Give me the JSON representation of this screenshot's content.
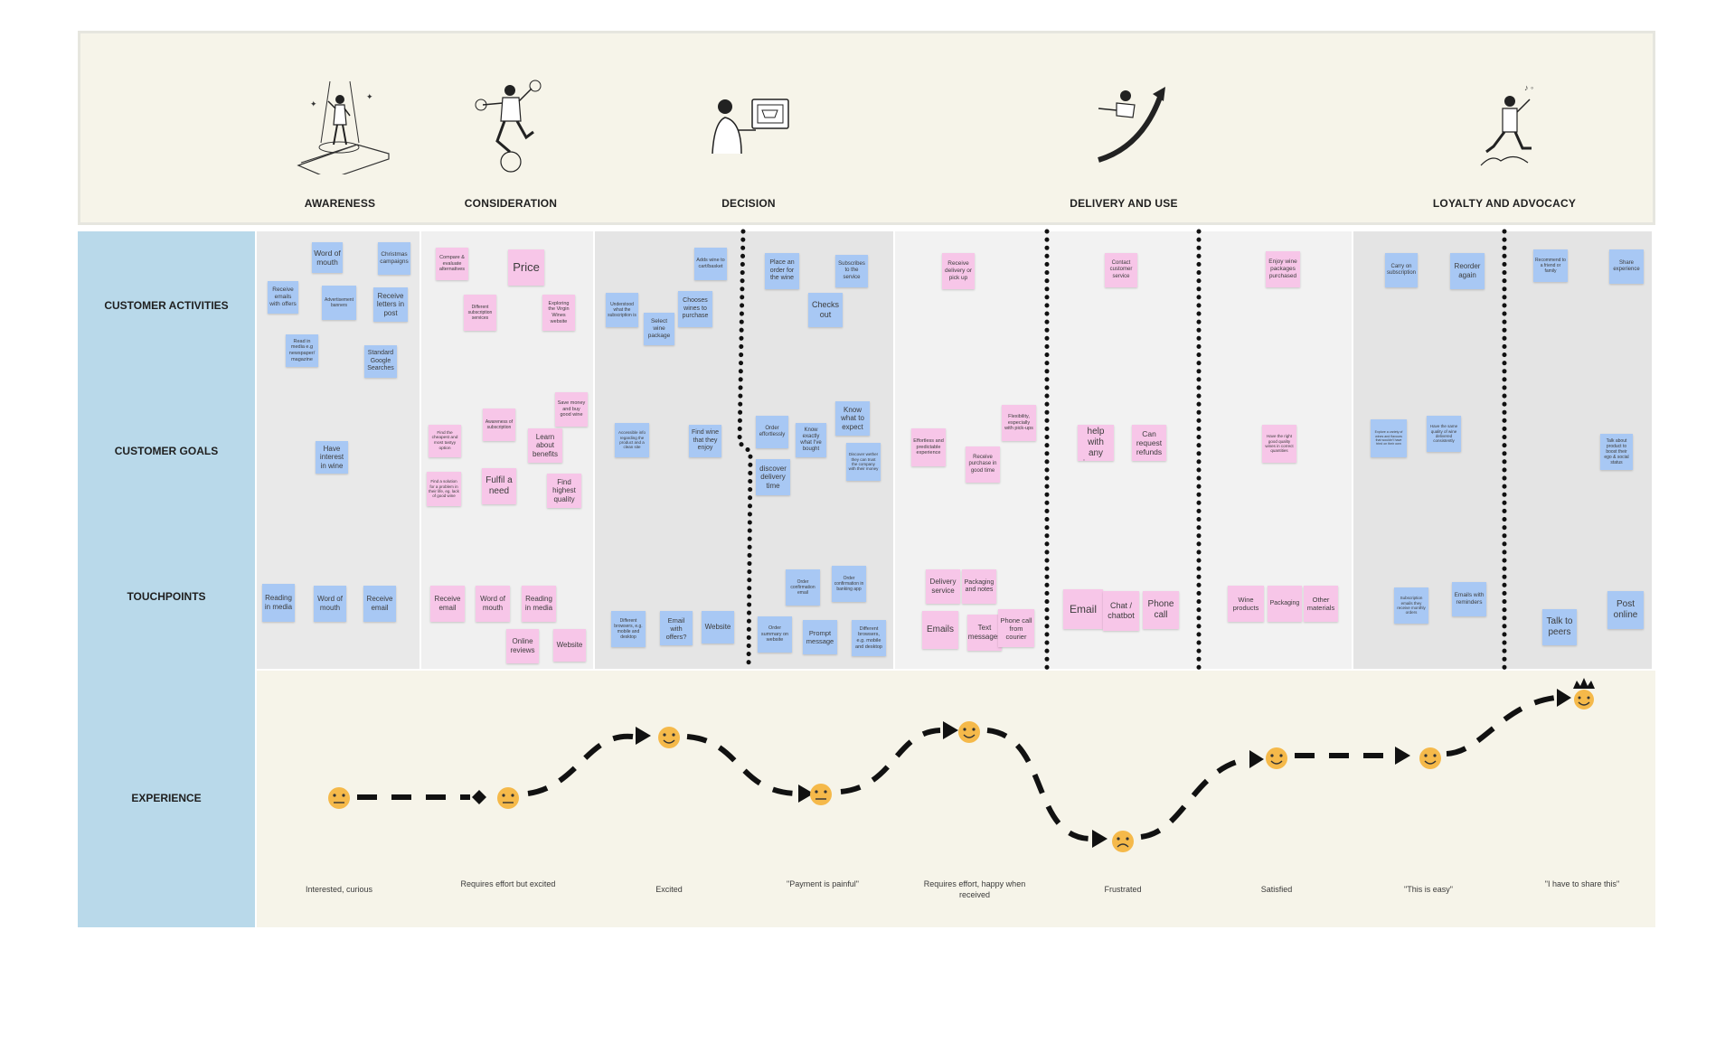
{
  "stages": [
    "AWARENESS",
    "CONSIDERATION",
    "DECISION",
    "DELIVERY AND USE",
    "LOYALTY AND ADVOCACY"
  ],
  "rows": [
    "CUSTOMER ACTIVITIES",
    "CUSTOMER GOALS",
    "TOUCHPOINTS",
    "EXPERIENCE"
  ],
  "notes": [
    "Word of mouth",
    "Christmas campaigns",
    "Receive emails with offers",
    "Advertisement banners",
    "Receive letters in post",
    "Read in media e.g newspaper/ magazine",
    "Standard Google Searches",
    "Have interest in wine",
    "Reading in media",
    "Word of mouth",
    "Receive email",
    "Compare & evaluate alternatives",
    "Price",
    "Different subscription services",
    "Exploring the Virgin Wines website",
    "Save money and buy good wine",
    "Awareness of subscription",
    "Find the cheapest and most tastyy option",
    "Learn about benefits",
    "Find a solution for a problem in their life, eg. lack of good wine",
    "Fulfil a need",
    "Find highest quality",
    "Receive email",
    "Word of mouth",
    "Reading in media",
    "Online reviews",
    "Website",
    "Adds wine to cart/basket",
    "Understood what the subscription is",
    "Chooses wines to purchase",
    "Select wine package",
    "Accessible info regarding the product and a clean site",
    "Find wine that they enjoy",
    "Different browsers, e.g. mobile and desktop",
    "Email with offers?",
    "Website",
    "Place an order for the wine",
    "Subscribes to the service",
    "Checks out",
    "Order effortlessly",
    "Know exactly what I've bought",
    "Know what to expect",
    "Discover wether they can trust the company with their money",
    "discover delivery time",
    "Order confirmation email",
    "Order confirmation in banking app",
    "Order summary on website",
    "Prompt message",
    "Different browsers, e.g. mobile and desktop",
    "Receive delivery or pick up",
    "Effortless and predictable experience",
    "Flexibility, especially with pick-ups",
    "Receive purchase in good time",
    "Delivery service",
    "Packaging and notes",
    "Emails",
    "Text messages",
    "Phone call from courier",
    "Contact customer service",
    "Get help with any issues",
    "Can request refunds",
    "Email",
    "Chat / chatbot",
    "Phone call",
    "Enjoy wine packages purchased",
    "Have the right good quality wines in correct quantities",
    "Wine products",
    "Packaging",
    "Other materials",
    "Carry on subscription",
    "Reorder again",
    "Explore a variety of wines and flavours that wouldn't have tried on their own",
    "Have the same quality of wine delivered consistently",
    "Subscription emails they receive monthly orders",
    "Emails with reminders",
    "Recommend to a friend or family",
    "Share experience",
    "Talk about product to boost their ego & social status",
    "Talk to peers",
    "Post online"
  ],
  "experience_captions": [
    "Interested, curious",
    "Requires effort but excited",
    "Excited",
    "\"Payment is painful\"",
    "Requires effort, happy when received",
    "Frustrated",
    "Satisfied",
    "\"This is easy\"",
    "\"I have to share this\""
  ],
  "experience_moods": [
    "neutral",
    "neutral",
    "happy",
    "neutral",
    "happy",
    "sad",
    "happy",
    "happy",
    "delighted"
  ],
  "colors": {
    "header_bg": "#f6f4e9",
    "label_col": "#b9d9ea",
    "blue_note": "#a8c8f4",
    "pink_note": "#f7c6e8",
    "emoji": "#f5b94a"
  }
}
